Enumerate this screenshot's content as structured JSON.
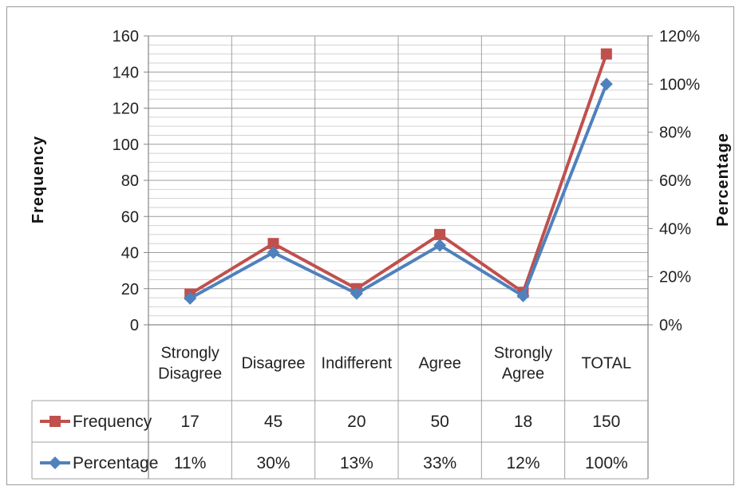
{
  "chart_data": {
    "type": "line",
    "title": "",
    "xlabel": "",
    "ylabel": "Frequency",
    "y2label": "Percentage",
    "ylim": [
      0,
      160
    ],
    "y2lim": [
      0,
      120
    ],
    "yticks": [
      "0",
      "20",
      "40",
      "60",
      "80",
      "100",
      "120",
      "140",
      "160"
    ],
    "y2ticks": [
      "0%",
      "20%",
      "40%",
      "60%",
      "80%",
      "100%",
      "120%"
    ],
    "grid": true,
    "legend": "data-table",
    "categories": [
      [
        "Strongly",
        "Disagree"
      ],
      [
        "Disagree"
      ],
      [
        "Indifferent"
      ],
      [
        "Agree"
      ],
      [
        "Strongly",
        "Agree"
      ],
      [
        "TOTAL"
      ]
    ],
    "series": [
      {
        "name": "Frequency",
        "axis": "left",
        "color": "#c0504d",
        "marker": "square",
        "values": [
          17,
          45,
          20,
          50,
          18,
          150
        ],
        "labels": [
          "17",
          "45",
          "20",
          "50",
          "18",
          "150"
        ]
      },
      {
        "name": "Percentage",
        "axis": "right",
        "color": "#4f81bd",
        "marker": "diamond",
        "values": [
          11,
          30,
          13,
          33,
          12,
          100
        ],
        "labels": [
          "11%",
          "30%",
          "13%",
          "33%",
          "12%",
          "100%"
        ]
      }
    ]
  }
}
